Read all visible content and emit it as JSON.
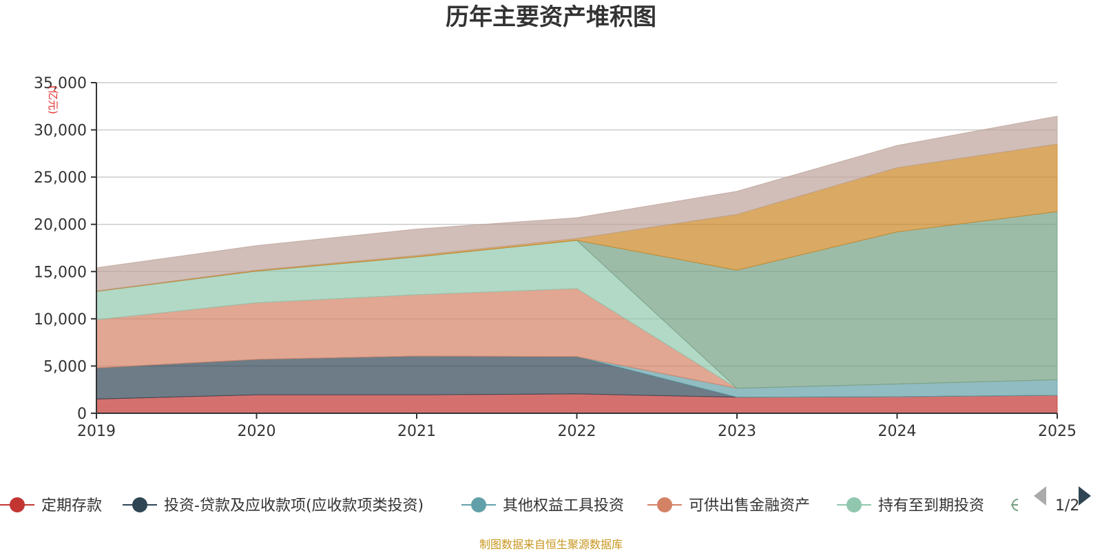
{
  "chart_data": {
    "type": "area",
    "title": "历年主要资产堆积图",
    "ylabel": "(亿元)",
    "xlabel": "",
    "ylim": [
      0,
      35000
    ],
    "yticks": [
      0,
      5000,
      10000,
      15000,
      20000,
      25000,
      30000,
      35000
    ],
    "ytick_labels": [
      "0",
      "5,000",
      "10,000",
      "15,000",
      "20,000",
      "25,000",
      "30,000",
      "35,000"
    ],
    "categories": [
      "2019",
      "2020",
      "2021",
      "2022",
      "2023",
      "2024",
      "2025"
    ],
    "stacked": true,
    "series": [
      {
        "name": "定期存款",
        "color": "#c23531",
        "values": [
          1500,
          1950,
          1950,
          2050,
          1700,
          1750,
          1900
        ],
        "in_legend": true
      },
      {
        "name": "投资-贷款及应收款项(应收款项类投资)",
        "color": "#2f4554",
        "values": [
          3300,
          3750,
          4100,
          3950,
          0,
          0,
          0
        ],
        "in_legend": true
      },
      {
        "name": "其他权益工具投资",
        "color": "#61a0a8",
        "values": [
          0,
          0,
          0,
          0,
          950,
          1350,
          1650
        ],
        "in_legend": true
      },
      {
        "name": "可供出售金融资产",
        "color": "#d48265",
        "values": [
          5100,
          6000,
          6500,
          7200,
          0,
          0,
          0
        ],
        "in_legend": true
      },
      {
        "name": "持有至到期投资",
        "color": "#91c7ae",
        "values": [
          3000,
          3350,
          4000,
          5100,
          0,
          0,
          0
        ],
        "in_legend": true
      },
      {
        "name": "",
        "color": "#749f83",
        "values": [
          0,
          0,
          0,
          0,
          12500,
          16100,
          17800
        ],
        "in_legend": false
      },
      {
        "name": "",
        "color": "#ca8622",
        "values": [
          50,
          100,
          150,
          200,
          5900,
          6800,
          7150
        ],
        "in_legend": false
      },
      {
        "name": "",
        "color": "#bda29a",
        "values": [
          2450,
          2600,
          2800,
          2200,
          2450,
          2350,
          2950
        ],
        "in_legend": false
      }
    ],
    "legend_position": "bottom",
    "legend_page": "1/2",
    "source": "制图数据来自恒生聚源数据库"
  }
}
